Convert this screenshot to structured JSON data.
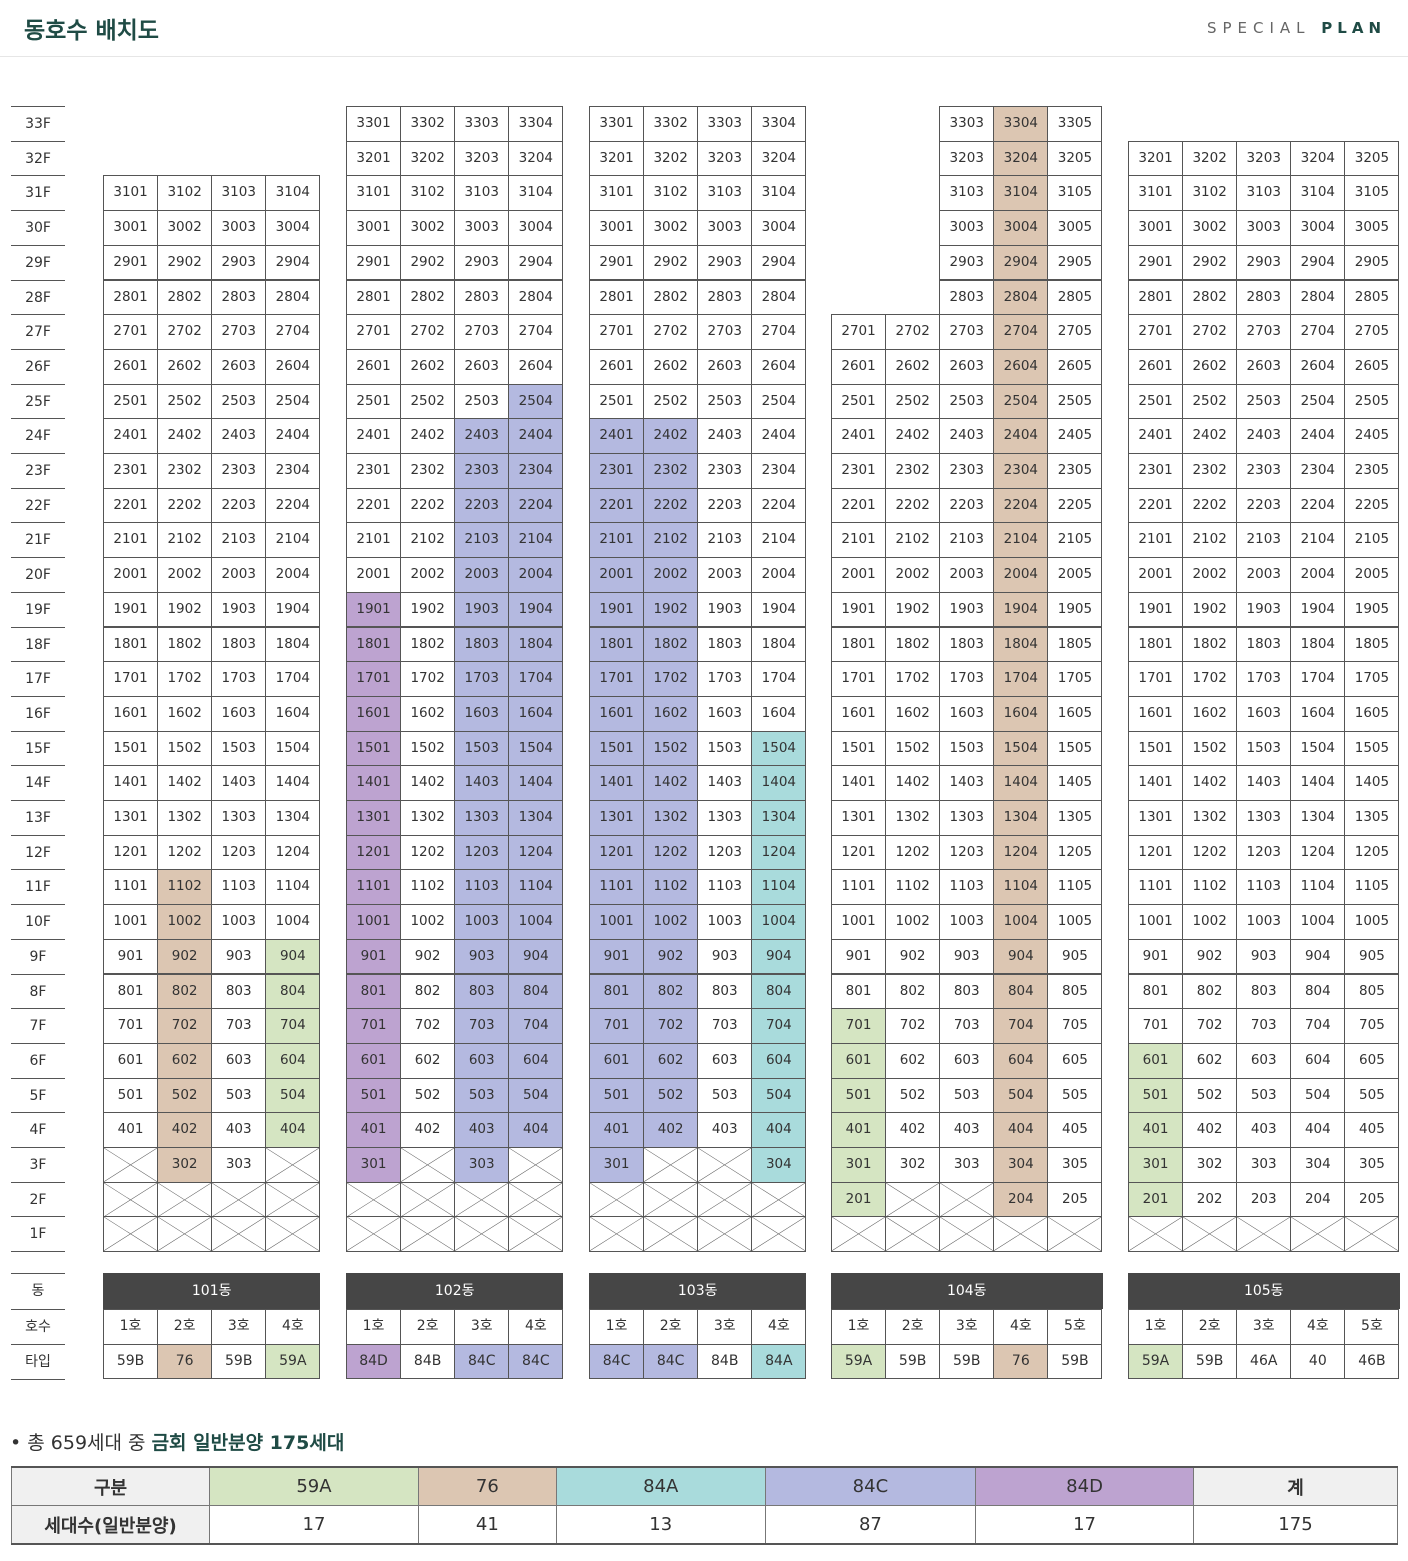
{
  "header": {
    "title": "동호수 배치도",
    "brand_light": "SPECIAL",
    "brand_bold": "PLAN"
  },
  "colors": {
    "59A": "#d5e5c2",
    "76": "#dcc6b2",
    "84A": "#a9dbdc",
    "84C": "#b4b9e0",
    "84D": "#bda3d0",
    "header_bar": "#464646"
  },
  "floors": [
    "33F",
    "32F",
    "31F",
    "30F",
    "29F",
    "28F",
    "27F",
    "26F",
    "25F",
    "24F",
    "23F",
    "22F",
    "21F",
    "20F",
    "19F",
    "18F",
    "17F",
    "16F",
    "15F",
    "14F",
    "13F",
    "12F",
    "11F",
    "10F",
    "9F",
    "8F",
    "7F",
    "6F",
    "5F",
    "4F",
    "3F",
    "2F",
    "1F"
  ],
  "row_labels": {
    "dong": "동",
    "ho": "호수",
    "type": "타입"
  },
  "buildings": [
    {
      "name": "101동",
      "units": [
        "1호",
        "2호",
        "3호",
        "4호"
      ],
      "types": [
        "59B",
        "76",
        "59B",
        "59A"
      ],
      "top": 31,
      "crossed": {
        "3": [
          1,
          4
        ],
        "2": [
          1,
          2,
          3,
          4
        ],
        "1": [
          1,
          2,
          3,
          4
        ]
      },
      "colored": [
        {
          "line": 2,
          "type": "76",
          "from": 3,
          "to": 11
        },
        {
          "line": 4,
          "type": "59A",
          "from": 4,
          "to": 9
        }
      ]
    },
    {
      "name": "102동",
      "units": [
        "1호",
        "2호",
        "3호",
        "4호"
      ],
      "types": [
        "84D",
        "84B",
        "84C",
        "84C"
      ],
      "top": 33,
      "crossed": {
        "3": [
          2,
          4
        ],
        "2": [
          1,
          2,
          3,
          4
        ],
        "1": [
          1,
          2,
          3,
          4
        ]
      },
      "colored": [
        {
          "line": 1,
          "type": "84D",
          "from": 3,
          "to": 19
        },
        {
          "line": 3,
          "type": "84C",
          "from": 3,
          "to": 24
        },
        {
          "line": 4,
          "type": "84C",
          "from": 4,
          "to": 25
        }
      ]
    },
    {
      "name": "103동",
      "units": [
        "1호",
        "2호",
        "3호",
        "4호"
      ],
      "types": [
        "84C",
        "84C",
        "84B",
        "84A"
      ],
      "top": 33,
      "crossed": {
        "3": [
          2,
          3
        ],
        "2": [
          1,
          2,
          3,
          4
        ],
        "1": [
          1,
          2,
          3,
          4
        ]
      },
      "colored": [
        {
          "line": 1,
          "type": "84C",
          "from": 3,
          "to": 24
        },
        {
          "line": 2,
          "type": "84C",
          "from": 4,
          "to": 24
        },
        {
          "line": 4,
          "type": "84A",
          "from": 3,
          "to": 15
        }
      ]
    },
    {
      "name": "104동",
      "units": [
        "1호",
        "2호",
        "3호",
        "4호",
        "5호"
      ],
      "types": [
        "59A",
        "59B",
        "59B",
        "76",
        "59B"
      ],
      "tops": [
        27,
        27,
        33,
        33,
        33
      ],
      "crossed": {
        "2": [
          2,
          3
        ],
        "1": [
          1,
          2,
          3,
          4,
          5
        ]
      },
      "colored": [
        {
          "line": 1,
          "type": "59A",
          "from": 2,
          "to": 7
        },
        {
          "line": 4,
          "type": "76",
          "from": 2,
          "to": 33
        }
      ]
    },
    {
      "name": "105동",
      "units": [
        "1호",
        "2호",
        "3호",
        "4호",
        "5호"
      ],
      "types": [
        "59A",
        "59B",
        "46A",
        "40",
        "46B"
      ],
      "top": 32,
      "crossed": {
        "1": [
          1,
          2,
          3,
          4,
          5
        ]
      },
      "colored": [
        {
          "line": 1,
          "type": "59A",
          "from": 2,
          "to": 6
        }
      ]
    }
  ],
  "note": {
    "prefix": "• 총 659세대 중 ",
    "bold": "금회 일반분양 175세대"
  },
  "summary": {
    "head_label": "구분",
    "count_label": "세대수(일반분양)",
    "columns": [
      {
        "name": "59A",
        "count": "17"
      },
      {
        "name": "76",
        "count": "41"
      },
      {
        "name": "84A",
        "count": "13"
      },
      {
        "name": "84C",
        "count": "87"
      },
      {
        "name": "84D",
        "count": "17"
      },
      {
        "name": "계",
        "count": "175"
      }
    ]
  }
}
